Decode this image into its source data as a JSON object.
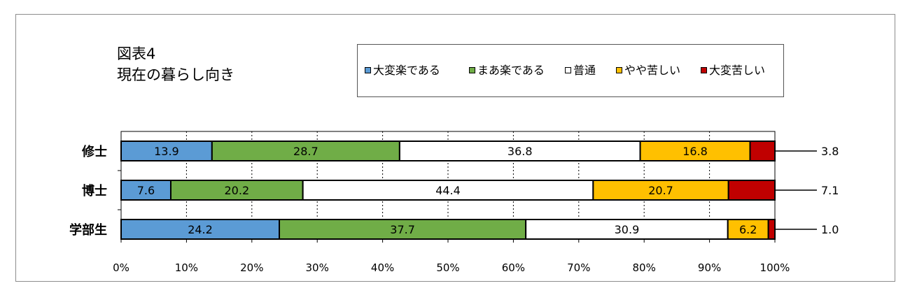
{
  "title": {
    "line1": "図表4",
    "line2": "現在の暮らし向き"
  },
  "colors": {
    "大変楽である": "#5b9bd5",
    "まあ楽である": "#70ad47",
    "普通": "#ffffff",
    "やや苦しい": "#ffc000",
    "大変苦しい": "#c00000"
  },
  "chart_data": {
    "type": "bar",
    "orientation": "horizontal",
    "stacked": "percent",
    "categories": [
      "修士",
      "博士",
      "学部生"
    ],
    "series": [
      {
        "name": "大変楽である",
        "values": [
          13.9,
          7.6,
          24.2
        ]
      },
      {
        "name": "まあ楽である",
        "values": [
          28.7,
          20.2,
          37.7
        ]
      },
      {
        "name": "普通",
        "values": [
          36.8,
          44.4,
          30.9
        ]
      },
      {
        "name": "やや苦しい",
        "values": [
          16.8,
          20.7,
          6.2
        ]
      },
      {
        "name": "大変苦しい",
        "values": [
          3.8,
          7.1,
          1.0
        ]
      }
    ],
    "xlim": [
      0,
      100
    ],
    "xticks": [
      "0%",
      "10%",
      "20%",
      "30%",
      "40%",
      "50%",
      "60%",
      "70%",
      "80%",
      "90%",
      "100%"
    ],
    "grid": "vertical dashed",
    "legend": "top",
    "xlabel": "",
    "ylabel": ""
  }
}
